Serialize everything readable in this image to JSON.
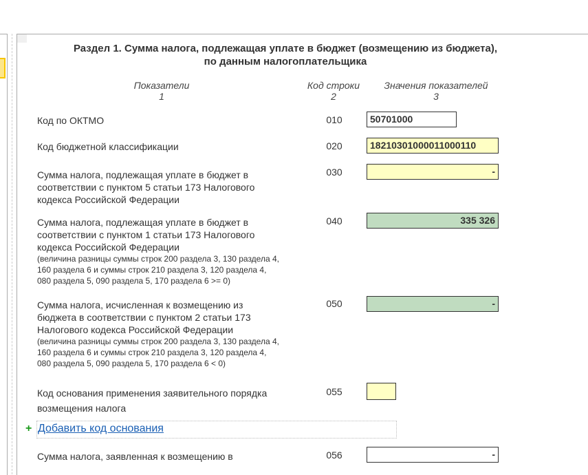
{
  "section_title_line1": "Раздел 1. Сумма налога, подлежащая уплате в бюджет (возмещению из бюджета),",
  "section_title_line2": "по данным налогоплательщика",
  "headers": {
    "col1": "Показатели",
    "col1_num": "1",
    "col2": "Код строки",
    "col2_num": "2",
    "col3": "Значения показателей",
    "col3_num": "3"
  },
  "rows": [
    {
      "label": "Код по ОКТМО",
      "code": "010",
      "value": "50701000"
    },
    {
      "label": "Код бюджетной классификации",
      "code": "020",
      "value": "18210301000011000110"
    },
    {
      "label_lines": [
        "Сумма налога, подлежащая уплате в бюджет в",
        "соответствии с пунктом 5 статьи 173 Налогового",
        "кодекса Российской Федерации"
      ],
      "code": "030",
      "value": "-"
    },
    {
      "label_lines": [
        "Сумма налога, подлежащая уплате в бюджет в",
        "соответствии с пунктом 1 статьи 173 Налогового",
        "кодекса Российской Федерации"
      ],
      "note_lines": [
        "(величина разницы суммы строк 200 раздела 3, 130 раздела 4,",
        "160 раздела 6 и суммы строк 210 раздела 3, 120 раздела 4,",
        "080 раздела 5, 090 раздела 5, 170 раздела 6 >= 0)"
      ],
      "code": "040",
      "value": "335 326"
    },
    {
      "label_lines": [
        "Сумма налога, исчисленная к возмещению из",
        "бюджета в соответствии с пунктом 2 статьи 173",
        "Налогового кодекса Российской Федерации"
      ],
      "note_lines": [
        "(величина разницы суммы строк 200 раздела 3, 130 раздела 4,",
        "160 раздела 6 и суммы строк 210 раздела 3, 120 раздела 4,",
        "080 раздела 5, 090 раздела 5, 170 раздела 6 < 0)"
      ],
      "code": "050",
      "value": "-"
    },
    {
      "label_lines": [
        "Код основания применения заявительного порядка",
        "возмещения налога"
      ],
      "code": "055",
      "value": ""
    },
    {
      "label": "Сумма налога, заявленная к возмещению в",
      "code": "056",
      "value": "-"
    }
  ],
  "add_link": "Добавить код основания",
  "colors": {
    "editable": "#ffffc4",
    "computed": "#c0dcc0",
    "link": "#1a5fb4",
    "plus": "#1a9a1a"
  }
}
